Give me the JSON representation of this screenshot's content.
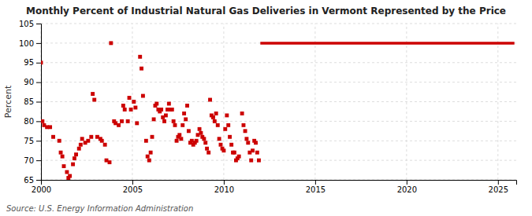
{
  "chart_data": {
    "type": "scatter",
    "title": "Monthly Percent of Industrial Natural Gas Deliveries in Vermont Represented by the Price",
    "ylabel": "Percent",
    "source": "Source: U.S. Energy Information Administration",
    "xlim": [
      2000,
      2026
    ],
    "ylim": [
      65,
      105
    ],
    "xticks": [
      2000,
      2005,
      2010,
      2015,
      2020,
      2025
    ],
    "yticks": [
      65,
      70,
      75,
      80,
      85,
      90,
      95,
      100,
      105
    ],
    "grid": true,
    "series": [
      {
        "type": "scatter",
        "color": "#cc0000",
        "marker": "square",
        "x": [
          2000.0,
          2000.08,
          2000.17,
          2000.33,
          2000.5,
          2000.67,
          2001.0,
          2001.08,
          2001.17,
          2001.25,
          2001.42,
          2001.5,
          2001.58,
          2001.75,
          2001.83,
          2001.92,
          2002.08,
          2002.17,
          2002.25,
          2002.42,
          2002.58,
          2002.75,
          2002.83,
          2002.92,
          2003.08,
          2003.25,
          2003.33,
          2003.5,
          2003.58,
          2003.75,
          2003.83,
          2004.0,
          2004.08,
          2004.25,
          2004.42,
          2004.5,
          2004.58,
          2004.75,
          2004.83,
          2004.92,
          2005.08,
          2005.17,
          2005.25,
          2005.42,
          2005.5,
          2005.58,
          2005.75,
          2005.83,
          2005.92,
          2006.0,
          2006.08,
          2006.17,
          2006.25,
          2006.33,
          2006.42,
          2006.5,
          2006.58,
          2006.67,
          2006.75,
          2006.83,
          2006.92,
          2007.0,
          2007.08,
          2007.17,
          2007.25,
          2007.33,
          2007.42,
          2007.5,
          2007.58,
          2007.67,
          2007.75,
          2007.83,
          2007.92,
          2008.0,
          2008.08,
          2008.17,
          2008.25,
          2008.33,
          2008.42,
          2008.5,
          2008.58,
          2008.67,
          2008.75,
          2008.83,
          2008.92,
          2009.0,
          2009.08,
          2009.17,
          2009.25,
          2009.33,
          2009.42,
          2009.5,
          2009.58,
          2009.67,
          2009.75,
          2009.83,
          2009.92,
          2010.0,
          2010.08,
          2010.17,
          2010.25,
          2010.33,
          2010.42,
          2010.5,
          2010.58,
          2010.67,
          2010.75,
          2010.83,
          2011.0,
          2011.08,
          2011.17,
          2011.25,
          2011.33,
          2011.42,
          2011.5,
          2011.58,
          2011.67,
          2011.75,
          2011.83,
          2011.92
        ],
        "values": [
          95.0,
          80.0,
          79.0,
          78.5,
          78.5,
          76.0,
          75.0,
          72.0,
          71.0,
          68.5,
          67.0,
          65.5,
          66.0,
          69.0,
          70.5,
          71.5,
          73.0,
          74.0,
          75.5,
          74.5,
          75.0,
          76.0,
          87.0,
          85.5,
          76.0,
          75.5,
          75.0,
          74.0,
          70.0,
          69.5,
          100.0,
          80.0,
          79.5,
          79.0,
          80.0,
          84.0,
          83.0,
          80.0,
          86.0,
          83.0,
          85.0,
          83.5,
          79.5,
          96.5,
          93.5,
          86.5,
          75.0,
          71.0,
          70.0,
          72.0,
          76.0,
          80.5,
          84.0,
          84.5,
          83.0,
          82.5,
          83.0,
          81.0,
          80.0,
          81.5,
          83.0,
          84.5,
          83.0,
          83.0,
          80.0,
          79.0,
          75.0,
          76.0,
          76.5,
          75.5,
          79.0,
          82.0,
          80.5,
          84.0,
          77.5,
          74.5,
          75.0,
          74.0,
          74.5,
          75.0,
          76.5,
          78.0,
          77.0,
          76.0,
          75.5,
          74.5,
          73.0,
          72.0,
          85.5,
          81.5,
          81.0,
          80.0,
          82.0,
          79.0,
          75.5,
          74.0,
          73.0,
          72.5,
          78.0,
          81.5,
          79.0,
          76.0,
          74.0,
          72.0,
          72.0,
          70.0,
          70.5,
          71.0,
          82.0,
          79.0,
          77.5,
          75.5,
          74.5,
          72.0,
          70.0,
          72.5,
          75.0,
          74.5,
          72.0,
          70.0
        ]
      },
      {
        "type": "line",
        "color": "#cc0000",
        "line_style": "solid",
        "x": [
          2012.0,
          2025.9
        ],
        "values": [
          100.0,
          100.0
        ]
      }
    ]
  }
}
